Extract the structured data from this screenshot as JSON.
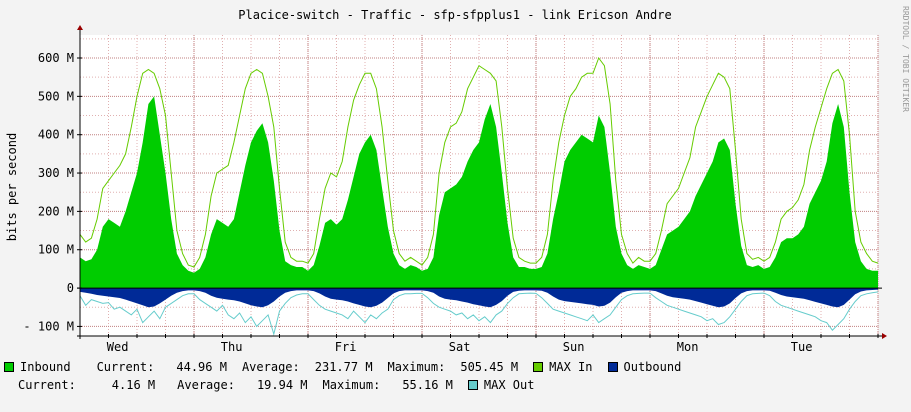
{
  "page_title": "Placice-switch - Traffic - sfp-sfpplus1 - link Ericson Andre",
  "watermark": "RRDTOOL / TOBI OETIKER",
  "colors": {
    "background": "#f3f3f3",
    "canvas": "#ffffff",
    "inbound": "#00cc00",
    "max_in": "#66cc00",
    "outbound": "#002a97",
    "max_out": "#66cccc",
    "grid_minor": "#e0b0b0",
    "grid_major": "#c08080",
    "axis": "#000000",
    "axis_arrow": "#990000"
  },
  "legend": {
    "inbound": {
      "name": "Inbound",
      "current_label": "Current:",
      "current": "44.96 M",
      "average_label": "Average:",
      "average": "231.77 M",
      "maximum_label": "Maximum:",
      "maximum": "505.45 M"
    },
    "max_in": {
      "name": "MAX In"
    },
    "outbound": {
      "name": "Outbound",
      "current_label": "Current:",
      "current": "4.16 M",
      "average_label": "Average:",
      "average": "19.94 M",
      "maximum_label": "Maximum:",
      "maximum": "55.16 M"
    },
    "max_out": {
      "name": "MAX Out"
    }
  },
  "chart_data": {
    "type": "area",
    "title": "Placice-switch - Traffic - sfp-sfpplus1 - link Ericson Andre",
    "ylabel": "bits per second",
    "xlabel": "",
    "ylim": [
      -125,
      660
    ],
    "y_ticks": [
      {
        "value": -100,
        "label": "- 100 M"
      },
      {
        "value": 0,
        "label": "0"
      },
      {
        "value": 100,
        "label": "100 M"
      },
      {
        "value": 200,
        "label": "200 M"
      },
      {
        "value": 300,
        "label": "300 M"
      },
      {
        "value": 400,
        "label": "400 M"
      },
      {
        "value": 500,
        "label": "500 M"
      },
      {
        "value": 600,
        "label": "600 M"
      }
    ],
    "x_range_days": [
      0,
      7
    ],
    "x_ticks": [
      {
        "day": 0.33,
        "label": "Wed"
      },
      {
        "day": 1.33,
        "label": "Thu"
      },
      {
        "day": 2.33,
        "label": "Fri"
      },
      {
        "day": 3.33,
        "label": "Sat"
      },
      {
        "day": 4.33,
        "label": "Sun"
      },
      {
        "day": 5.33,
        "label": "Mon"
      },
      {
        "day": 6.33,
        "label": "Tue"
      }
    ],
    "grid": true,
    "units": "M bits per second",
    "series": [
      {
        "name": "Inbound",
        "day": [
          0,
          0.05,
          0.1,
          0.15,
          0.2,
          0.25,
          0.3,
          0.35,
          0.4,
          0.45,
          0.5,
          0.55,
          0.6,
          0.65,
          0.7,
          0.75,
          0.8,
          0.85,
          0.9,
          0.95,
          1.0,
          1.05,
          1.1,
          1.15,
          1.2,
          1.25,
          1.3,
          1.35,
          1.4,
          1.45,
          1.5,
          1.55,
          1.6,
          1.65,
          1.7,
          1.75,
          1.8,
          1.85,
          1.9,
          1.95,
          2.0,
          2.05,
          2.1,
          2.15,
          2.2,
          2.25,
          2.3,
          2.35,
          2.4,
          2.45,
          2.5,
          2.55,
          2.6,
          2.65,
          2.7,
          2.75,
          2.8,
          2.85,
          2.9,
          2.95,
          3.0,
          3.05,
          3.1,
          3.15,
          3.2,
          3.25,
          3.3,
          3.35,
          3.4,
          3.45,
          3.5,
          3.55,
          3.6,
          3.65,
          3.7,
          3.75,
          3.8,
          3.85,
          3.9,
          3.95,
          4.0,
          4.05,
          4.1,
          4.15,
          4.2,
          4.25,
          4.3,
          4.35,
          4.4,
          4.45,
          4.5,
          4.55,
          4.6,
          4.65,
          4.7,
          4.75,
          4.8,
          4.85,
          4.9,
          4.95,
          5.0,
          5.05,
          5.1,
          5.15,
          5.2,
          5.25,
          5.3,
          5.35,
          5.4,
          5.45,
          5.5,
          5.55,
          5.6,
          5.65,
          5.7,
          5.75,
          5.8,
          5.85,
          5.9,
          5.95,
          6.0,
          6.05,
          6.1,
          6.15,
          6.2,
          6.25,
          6.3,
          6.35,
          6.4,
          6.45,
          6.5,
          6.55,
          6.6,
          6.65,
          6.7,
          6.75,
          6.8,
          6.85,
          6.9,
          6.95,
          7.0
        ],
        "values": [
          80,
          70,
          75,
          100,
          160,
          180,
          170,
          160,
          200,
          250,
          300,
          380,
          480,
          500,
          400,
          300,
          180,
          90,
          60,
          45,
          40,
          50,
          80,
          140,
          180,
          170,
          160,
          180,
          250,
          320,
          380,
          410,
          430,
          380,
          280,
          150,
          70,
          60,
          55,
          55,
          45,
          60,
          110,
          170,
          180,
          165,
          180,
          230,
          290,
          350,
          380,
          400,
          360,
          260,
          160,
          90,
          60,
          50,
          60,
          55,
          45,
          50,
          80,
          190,
          250,
          260,
          270,
          290,
          330,
          360,
          380,
          440,
          480,
          420,
          300,
          170,
          80,
          55,
          55,
          50,
          50,
          55,
          90,
          180,
          250,
          330,
          360,
          380,
          400,
          390,
          380,
          450,
          420,
          300,
          160,
          90,
          60,
          50,
          60,
          55,
          50,
          60,
          100,
          140,
          150,
          160,
          180,
          200,
          240,
          270,
          300,
          330,
          380,
          390,
          360,
          220,
          110,
          60,
          55,
          60,
          50,
          55,
          80,
          120,
          130,
          130,
          140,
          160,
          220,
          250,
          280,
          330,
          430,
          480,
          420,
          250,
          120,
          70,
          50,
          45,
          45
        ]
      },
      {
        "name": "MAX In",
        "day": [
          0,
          0.05,
          0.1,
          0.15,
          0.2,
          0.25,
          0.3,
          0.35,
          0.4,
          0.45,
          0.5,
          0.55,
          0.6,
          0.65,
          0.7,
          0.75,
          0.8,
          0.85,
          0.9,
          0.95,
          1.0,
          1.05,
          1.1,
          1.15,
          1.2,
          1.25,
          1.3,
          1.35,
          1.4,
          1.45,
          1.5,
          1.55,
          1.6,
          1.65,
          1.7,
          1.75,
          1.8,
          1.85,
          1.9,
          1.95,
          2.0,
          2.05,
          2.1,
          2.15,
          2.2,
          2.25,
          2.3,
          2.35,
          2.4,
          2.45,
          2.5,
          2.55,
          2.6,
          2.65,
          2.7,
          2.75,
          2.8,
          2.85,
          2.9,
          2.95,
          3.0,
          3.05,
          3.1,
          3.15,
          3.2,
          3.25,
          3.3,
          3.35,
          3.4,
          3.45,
          3.5,
          3.55,
          3.6,
          3.65,
          3.7,
          3.75,
          3.8,
          3.85,
          3.9,
          3.95,
          4.0,
          4.05,
          4.1,
          4.15,
          4.2,
          4.25,
          4.3,
          4.35,
          4.4,
          4.45,
          4.5,
          4.55,
          4.6,
          4.65,
          4.7,
          4.75,
          4.8,
          4.85,
          4.9,
          4.95,
          5.0,
          5.05,
          5.1,
          5.15,
          5.2,
          5.25,
          5.3,
          5.35,
          5.4,
          5.45,
          5.5,
          5.55,
          5.6,
          5.65,
          5.7,
          5.75,
          5.8,
          5.85,
          5.9,
          5.95,
          6.0,
          6.05,
          6.1,
          6.15,
          6.2,
          6.25,
          6.3,
          6.35,
          6.4,
          6.45,
          6.5,
          6.55,
          6.6,
          6.65,
          6.7,
          6.75,
          6.8,
          6.85,
          6.9,
          6.95,
          7.0
        ],
        "values": [
          140,
          120,
          130,
          180,
          260,
          280,
          300,
          320,
          350,
          420,
          500,
          560,
          570,
          560,
          520,
          450,
          300,
          150,
          90,
          60,
          55,
          80,
          140,
          240,
          300,
          310,
          320,
          380,
          450,
          520,
          560,
          570,
          560,
          500,
          420,
          260,
          120,
          80,
          70,
          70,
          65,
          90,
          180,
          260,
          300,
          290,
          330,
          420,
          490,
          530,
          560,
          560,
          520,
          420,
          280,
          150,
          90,
          70,
          80,
          70,
          60,
          80,
          140,
          300,
          380,
          420,
          430,
          460,
          520,
          550,
          580,
          570,
          560,
          540,
          420,
          260,
          130,
          80,
          70,
          65,
          65,
          80,
          140,
          280,
          380,
          450,
          500,
          520,
          550,
          560,
          560,
          600,
          580,
          480,
          280,
          140,
          90,
          65,
          80,
          70,
          70,
          90,
          150,
          220,
          240,
          260,
          300,
          340,
          420,
          460,
          500,
          530,
          560,
          550,
          520,
          360,
          180,
          90,
          75,
          80,
          70,
          80,
          120,
          180,
          200,
          210,
          230,
          270,
          360,
          420,
          470,
          520,
          560,
          570,
          540,
          400,
          200,
          120,
          90,
          70,
          65
        ]
      },
      {
        "name": "Outbound",
        "day": [
          0,
          0.05,
          0.1,
          0.15,
          0.2,
          0.25,
          0.3,
          0.35,
          0.4,
          0.45,
          0.5,
          0.55,
          0.6,
          0.65,
          0.7,
          0.75,
          0.8,
          0.85,
          0.9,
          0.95,
          1.0,
          1.05,
          1.1,
          1.15,
          1.2,
          1.25,
          1.3,
          1.35,
          1.4,
          1.45,
          1.5,
          1.55,
          1.6,
          1.65,
          1.7,
          1.75,
          1.8,
          1.85,
          1.9,
          1.95,
          2.0,
          2.05,
          2.1,
          2.15,
          2.2,
          2.25,
          2.3,
          2.35,
          2.4,
          2.45,
          2.5,
          2.55,
          2.6,
          2.65,
          2.7,
          2.75,
          2.8,
          2.85,
          2.9,
          2.95,
          3.0,
          3.05,
          3.1,
          3.15,
          3.2,
          3.25,
          3.3,
          3.35,
          3.4,
          3.45,
          3.5,
          3.55,
          3.6,
          3.65,
          3.7,
          3.75,
          3.8,
          3.85,
          3.9,
          3.95,
          4.0,
          4.05,
          4.1,
          4.15,
          4.2,
          4.25,
          4.3,
          4.35,
          4.4,
          4.45,
          4.5,
          4.55,
          4.6,
          4.65,
          4.7,
          4.75,
          4.8,
          4.85,
          4.9,
          4.95,
          5.0,
          5.05,
          5.1,
          5.15,
          5.2,
          5.25,
          5.3,
          5.35,
          5.4,
          5.45,
          5.5,
          5.55,
          5.6,
          5.65,
          5.7,
          5.75,
          5.8,
          5.85,
          5.9,
          5.95,
          6.0,
          6.05,
          6.1,
          6.15,
          6.2,
          6.25,
          6.3,
          6.35,
          6.4,
          6.45,
          6.5,
          6.55,
          6.6,
          6.65,
          6.7,
          6.75,
          6.8,
          6.85,
          6.9,
          6.95,
          7.0
        ],
        "values": [
          -10,
          -12,
          -15,
          -18,
          -20,
          -22,
          -24,
          -26,
          -30,
          -35,
          -40,
          -45,
          -50,
          -48,
          -40,
          -30,
          -20,
          -12,
          -8,
          -6,
          -6,
          -8,
          -12,
          -20,
          -25,
          -28,
          -30,
          -32,
          -35,
          -40,
          -45,
          -48,
          -50,
          -45,
          -35,
          -22,
          -12,
          -8,
          -6,
          -6,
          -6,
          -8,
          -14,
          -22,
          -28,
          -30,
          -32,
          -35,
          -40,
          -44,
          -48,
          -50,
          -46,
          -38,
          -26,
          -14,
          -8,
          -6,
          -6,
          -6,
          -6,
          -8,
          -12,
          -22,
          -28,
          -30,
          -32,
          -35,
          -38,
          -42,
          -45,
          -48,
          -50,
          -44,
          -34,
          -20,
          -10,
          -7,
          -6,
          -6,
          -6,
          -7,
          -12,
          -22,
          -30,
          -34,
          -36,
          -38,
          -40,
          -42,
          -44,
          -48,
          -46,
          -38,
          -24,
          -12,
          -8,
          -6,
          -6,
          -6,
          -6,
          -8,
          -14,
          -20,
          -24,
          -26,
          -28,
          -30,
          -34,
          -38,
          -42,
          -46,
          -50,
          -48,
          -40,
          -26,
          -14,
          -8,
          -6,
          -6,
          -6,
          -7,
          -12,
          -18,
          -22,
          -24,
          -26,
          -28,
          -32,
          -36,
          -40,
          -44,
          -48,
          -50,
          -44,
          -30,
          -16,
          -9,
          -6,
          -5,
          -4
        ]
      },
      {
        "name": "MAX Out",
        "day": [
          0,
          0.05,
          0.1,
          0.15,
          0.2,
          0.25,
          0.3,
          0.35,
          0.4,
          0.45,
          0.5,
          0.55,
          0.6,
          0.65,
          0.7,
          0.75,
          0.8,
          0.85,
          0.9,
          0.95,
          1.0,
          1.05,
          1.1,
          1.15,
          1.2,
          1.25,
          1.3,
          1.35,
          1.4,
          1.45,
          1.5,
          1.55,
          1.6,
          1.65,
          1.7,
          1.75,
          1.8,
          1.85,
          1.9,
          1.95,
          2.0,
          2.05,
          2.1,
          2.15,
          2.2,
          2.25,
          2.3,
          2.35,
          2.4,
          2.45,
          2.5,
          2.55,
          2.6,
          2.65,
          2.7,
          2.75,
          2.8,
          2.85,
          2.9,
          2.95,
          3.0,
          3.05,
          3.1,
          3.15,
          3.2,
          3.25,
          3.3,
          3.35,
          3.4,
          3.45,
          3.5,
          3.55,
          3.6,
          3.65,
          3.7,
          3.75,
          3.8,
          3.85,
          3.9,
          3.95,
          4.0,
          4.05,
          4.1,
          4.15,
          4.2,
          4.25,
          4.3,
          4.35,
          4.4,
          4.45,
          4.5,
          4.55,
          4.6,
          4.65,
          4.7,
          4.75,
          4.8,
          4.85,
          4.9,
          4.95,
          5.0,
          5.05,
          5.1,
          5.15,
          5.2,
          5.25,
          5.3,
          5.35,
          5.4,
          5.45,
          5.5,
          5.55,
          5.6,
          5.65,
          5.7,
          5.75,
          5.8,
          5.85,
          5.9,
          5.95,
          6.0,
          6.05,
          6.1,
          6.15,
          6.2,
          6.25,
          6.3,
          6.35,
          6.4,
          6.45,
          6.5,
          6.55,
          6.6,
          6.65,
          6.7,
          6.75,
          6.8,
          6.85,
          6.9,
          6.95,
          7.0
        ],
        "values": [
          -20,
          -45,
          -30,
          -35,
          -40,
          -38,
          -55,
          -50,
          -60,
          -70,
          -55,
          -90,
          -75,
          -60,
          -80,
          -50,
          -40,
          -30,
          -20,
          -15,
          -15,
          -30,
          -40,
          -50,
          -60,
          -45,
          -70,
          -80,
          -65,
          -90,
          -75,
          -100,
          -85,
          -70,
          -120,
          -60,
          -40,
          -25,
          -18,
          -15,
          -15,
          -30,
          -45,
          -55,
          -60,
          -65,
          -70,
          -80,
          -60,
          -75,
          -90,
          -70,
          -80,
          -65,
          -55,
          -30,
          -20,
          -15,
          -15,
          -14,
          -14,
          -25,
          -40,
          -50,
          -55,
          -60,
          -70,
          -65,
          -80,
          -70,
          -85,
          -75,
          -90,
          -70,
          -60,
          -40,
          -25,
          -15,
          -14,
          -13,
          -14,
          -25,
          -40,
          -55,
          -60,
          -65,
          -70,
          -75,
          -80,
          -85,
          -70,
          -90,
          -80,
          -70,
          -50,
          -30,
          -20,
          -15,
          -14,
          -13,
          -13,
          -25,
          -35,
          -45,
          -50,
          -55,
          -60,
          -65,
          -70,
          -75,
          -85,
          -80,
          -95,
          -90,
          -75,
          -55,
          -35,
          -20,
          -15,
          -14,
          -13,
          -20,
          -35,
          -45,
          -50,
          -55,
          -60,
          -65,
          -70,
          -75,
          -85,
          -90,
          -110,
          -95,
          -80,
          -55,
          -35,
          -20,
          -15,
          -12,
          -10
        ]
      }
    ]
  }
}
